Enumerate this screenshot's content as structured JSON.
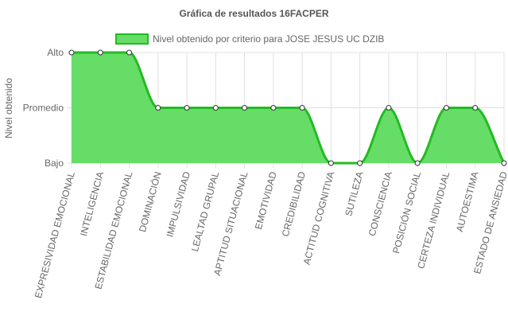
{
  "chart_data": {
    "type": "area",
    "title": "Gráfica de resultados 16FACPER",
    "xlabel": "",
    "ylabel": "Nivel obtenido",
    "y_levels": [
      "Bajo",
      "Promedio",
      "Alto"
    ],
    "ylim": [
      0,
      2
    ],
    "grid": true,
    "legend_position": "top",
    "categories": [
      "EXPRESIVIDAD EMOCIONAL",
      "INTELIGENCIA",
      "ESTABILIDAD EMOCIONAL",
      "DOMINACIÓN",
      "IMPULSIVIDAD",
      "LEALTAD GRUPAL",
      "APTITUD SITUACIONAL",
      "EMOTIVIDAD",
      "CREDIBILIDAD",
      "ACTITUD COGNITIVA",
      "SUTILEZA",
      "CONSCIENCIA",
      "POSICIÓN SOCIAL",
      "CERTEZA INDIVIDUAL",
      "AUTOESTIMA",
      "ESTADO DE ANSIEDAD"
    ],
    "series": [
      {
        "name": "Nivel obtenido por criterio para JOSE JESUS UC DZIB",
        "values": [
          2,
          2,
          2,
          1,
          1,
          1,
          1,
          1,
          1,
          0,
          0,
          1,
          0,
          1,
          1,
          0
        ]
      }
    ],
    "colors": {
      "fill": "#66dd66",
      "line": "#22bb22",
      "point_fill": "#ffffff",
      "point_stroke": "#333333",
      "grid": "#e0e0e0",
      "axis_text": "#666666",
      "title": "#555555"
    }
  }
}
